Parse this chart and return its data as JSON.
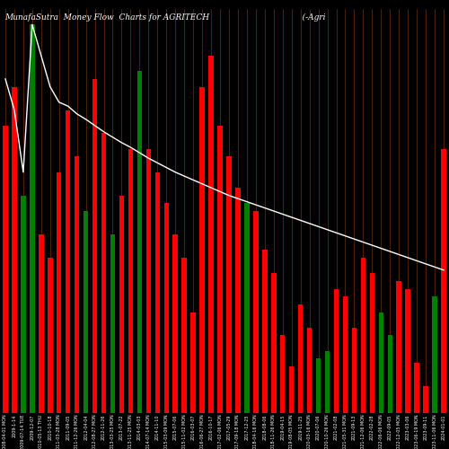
{
  "title": "MunafaSutra  Money Flow  Charts for AGRITECH                                    (-Agri                                                                    -Tech",
  "background_color": "#000000",
  "bar_colors": [
    "red",
    "red",
    "green",
    "green",
    "red",
    "red",
    "red",
    "red",
    "red",
    "green",
    "red",
    "red",
    "green",
    "red",
    "red",
    "green",
    "red",
    "red",
    "red",
    "red",
    "red",
    "red",
    "red",
    "red",
    "red",
    "red",
    "red",
    "green",
    "red",
    "red",
    "red",
    "red",
    "red",
    "red",
    "red",
    "green",
    "green",
    "red",
    "red",
    "red",
    "red",
    "red",
    "green",
    "green",
    "red",
    "red",
    "red",
    "red",
    "green",
    "red"
  ],
  "bar_values": [
    370,
    420,
    280,
    500,
    230,
    200,
    310,
    390,
    330,
    260,
    430,
    360,
    230,
    280,
    340,
    440,
    340,
    310,
    270,
    230,
    200,
    130,
    420,
    460,
    370,
    330,
    290,
    270,
    260,
    210,
    180,
    100,
    60,
    140,
    110,
    70,
    80,
    160,
    150,
    110,
    200,
    180,
    130,
    100,
    170,
    160,
    65,
    35,
    150,
    340
  ],
  "line_values": [
    430,
    390,
    310,
    500,
    460,
    420,
    400,
    395,
    385,
    378,
    370,
    362,
    355,
    348,
    342,
    335,
    328,
    322,
    316,
    310,
    305,
    300,
    295,
    290,
    285,
    280,
    276,
    272,
    268,
    264,
    260,
    256,
    252,
    248,
    244,
    240,
    236,
    232,
    228,
    224,
    220,
    216,
    212,
    208,
    204,
    200,
    196,
    192,
    188,
    184
  ],
  "grid_color": "#8B4513",
  "line_color": "#ffffff",
  "text_color": "#ffffff",
  "xlabel_fontsize": 3.5,
  "title_fontsize": 6.5,
  "ylim_max": 520,
  "x_labels": [
    "2008-04-01 MON",
    "2009-1-14",
    "2009-07-14 TUE",
    "2009-12-07",
    "2010-05-13 THU",
    "2010-10-18",
    "2011-03-28 MON",
    "2011-09-05",
    "2011-12-26 MON",
    "2012-04-04",
    "2012-08-27 MON",
    "2012-11-26",
    "2013-03-25 MON",
    "2013-07-22",
    "2013-11-25 MON",
    "2014-03-03",
    "2014-07-14 MON",
    "2014-11-10",
    "2015-03-09 MON",
    "2015-07-06",
    "2015-11-02 MON",
    "2016-03-07",
    "2016-06-27 MON",
    "2016-10-17",
    "2017-02-06 MON",
    "2017-05-29",
    "2017-09-18 MON",
    "2017-12-25",
    "2018-04-16 MON",
    "2018-08-06",
    "2018-11-26 MON",
    "2019-04-15",
    "2019-08-05 MON",
    "2019-11-25",
    "2020-03-16 MON",
    "2020-07-06",
    "2020-10-26 MON",
    "2021-02-08",
    "2021-05-31 MON",
    "2021-09-13",
    "2021-12-06 MON",
    "2022-02-28",
    "2022-06-06 MON",
    "2022-09-05",
    "2022-12-05 MON",
    "2023-03-06",
    "2023-06-19 MON",
    "2023-09-11",
    "2023-11-06 MON",
    "2024-01-01"
  ]
}
